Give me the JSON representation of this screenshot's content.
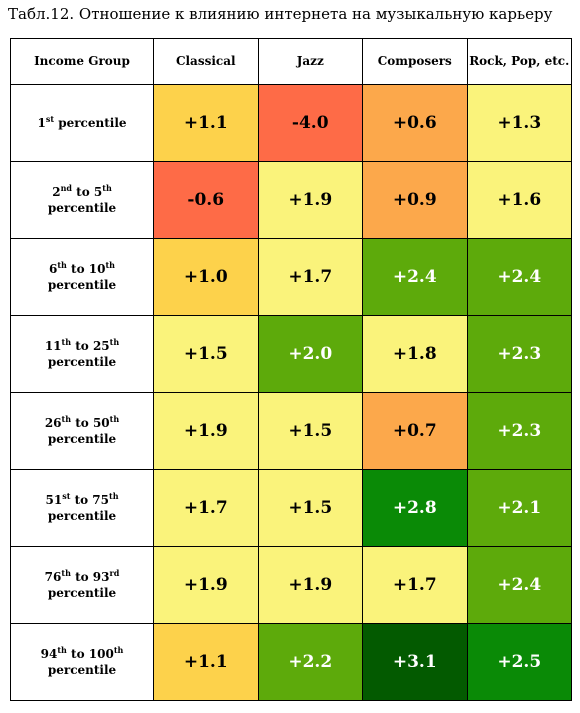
{
  "title": "Табл.12. Отношение к влиянию интернета на музыкальную карьеру",
  "chart_data": {
    "type": "heatmap",
    "corner_label": "Income Group",
    "columns": [
      "Classical",
      "Jazz",
      "Composers",
      "Rock, Pop, etc."
    ],
    "rows": [
      {
        "pre": "1",
        "pre_sup": "st",
        "mid": " percentile",
        "post": "",
        "post_sup": "",
        "line2": ""
      },
      {
        "pre": "2",
        "pre_sup": "nd",
        "mid": " to ",
        "post": "5",
        "post_sup": "th",
        "line2": "percentile"
      },
      {
        "pre": "6",
        "pre_sup": "th",
        "mid": " to ",
        "post": "10",
        "post_sup": "th",
        "line2": "percentile"
      },
      {
        "pre": "11",
        "pre_sup": "th",
        "mid": " to ",
        "post": "25",
        "post_sup": "th",
        "line2": "percentile"
      },
      {
        "pre": "26",
        "pre_sup": "th",
        "mid": " to ",
        "post": "50",
        "post_sup": "th",
        "line2": "percentile"
      },
      {
        "pre": "51",
        "pre_sup": "st",
        "mid": " to ",
        "post": "75",
        "post_sup": "th",
        "line2": "percentile"
      },
      {
        "pre": "76",
        "pre_sup": "th",
        "mid": " to ",
        "post": "93",
        "post_sup": "rd",
        "line2": "percentile"
      },
      {
        "pre": "94",
        "pre_sup": "th",
        "mid": " to ",
        "post": "100",
        "post_sup": "th",
        "line2": "percentile"
      }
    ],
    "values": [
      [
        "+1.1",
        "-4.0",
        "+0.6",
        "+1.3"
      ],
      [
        "-0.6",
        "+1.9",
        "+0.9",
        "+1.6"
      ],
      [
        "+1.0",
        "+1.7",
        "+2.4",
        "+2.4"
      ],
      [
        "+1.5",
        "+2.0",
        "+1.8",
        "+2.3"
      ],
      [
        "+1.9",
        "+1.5",
        "+0.7",
        "+2.3"
      ],
      [
        "+1.7",
        "+1.5",
        "+2.8",
        "+2.1"
      ],
      [
        "+1.9",
        "+1.9",
        "+1.7",
        "+2.4"
      ],
      [
        "+1.1",
        "+2.2",
        "+3.1",
        "+2.5"
      ]
    ],
    "cell_colors": [
      [
        "#fdd24b",
        "#fe6b47",
        "#fca84b",
        "#faf37b"
      ],
      [
        "#fe6b47",
        "#faf37b",
        "#fca84b",
        "#faf37b"
      ],
      [
        "#fdd24b",
        "#faf37b",
        "#5daa0b",
        "#5daa0b"
      ],
      [
        "#faf37b",
        "#5daa0b",
        "#faf37b",
        "#5daa0b"
      ],
      [
        "#faf37b",
        "#faf37b",
        "#fca84b",
        "#5daa0b"
      ],
      [
        "#faf37b",
        "#faf37b",
        "#0a8a06",
        "#5daa0b"
      ],
      [
        "#faf37b",
        "#faf37b",
        "#faf37b",
        "#5daa0b"
      ],
      [
        "#fdd24b",
        "#5daa0b",
        "#035a00",
        "#0a8a06"
      ]
    ],
    "text_colors": [
      [
        "#000000",
        "#000000",
        "#000000",
        "#000000"
      ],
      [
        "#000000",
        "#000000",
        "#000000",
        "#000000"
      ],
      [
        "#000000",
        "#000000",
        "#ffffff",
        "#ffffff"
      ],
      [
        "#000000",
        "#ffffff",
        "#000000",
        "#ffffff"
      ],
      [
        "#000000",
        "#000000",
        "#000000",
        "#ffffff"
      ],
      [
        "#000000",
        "#000000",
        "#ffffff",
        "#ffffff"
      ],
      [
        "#000000",
        "#000000",
        "#000000",
        "#ffffff"
      ],
      [
        "#000000",
        "#ffffff",
        "#ffffff",
        "#ffffff"
      ]
    ]
  }
}
